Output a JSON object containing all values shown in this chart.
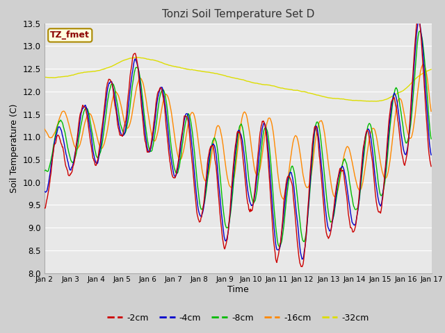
{
  "title": "Tonzi Soil Temperature Set D",
  "xlabel": "Time",
  "ylabel": "Soil Temperature (C)",
  "annotation": "TZ_fmet",
  "ylim": [
    8.0,
    13.5
  ],
  "colors": {
    "-2cm": "#cc0000",
    "-4cm": "#0000cc",
    "-8cm": "#00bb00",
    "-16cm": "#ff8800",
    "-32cm": "#dddd00"
  },
  "legend_labels": [
    "-2cm",
    "-4cm",
    "-8cm",
    "-16cm",
    "-32cm"
  ],
  "xtick_labels": [
    "Jan 2",
    "Jan 3",
    "Jan 4",
    "Jan 5",
    "Jan 6",
    "Jan 7",
    "Jan 8",
    "Jan 9",
    "Jan 10",
    "Jan 11",
    "Jan 12",
    "Jan 13",
    "Jan 14",
    "Jan 15",
    "Jan 16",
    "Jan 17"
  ],
  "fig_bg": "#d0d0d0",
  "plot_bg": "#e8e8e8",
  "grid_color": "#ffffff"
}
